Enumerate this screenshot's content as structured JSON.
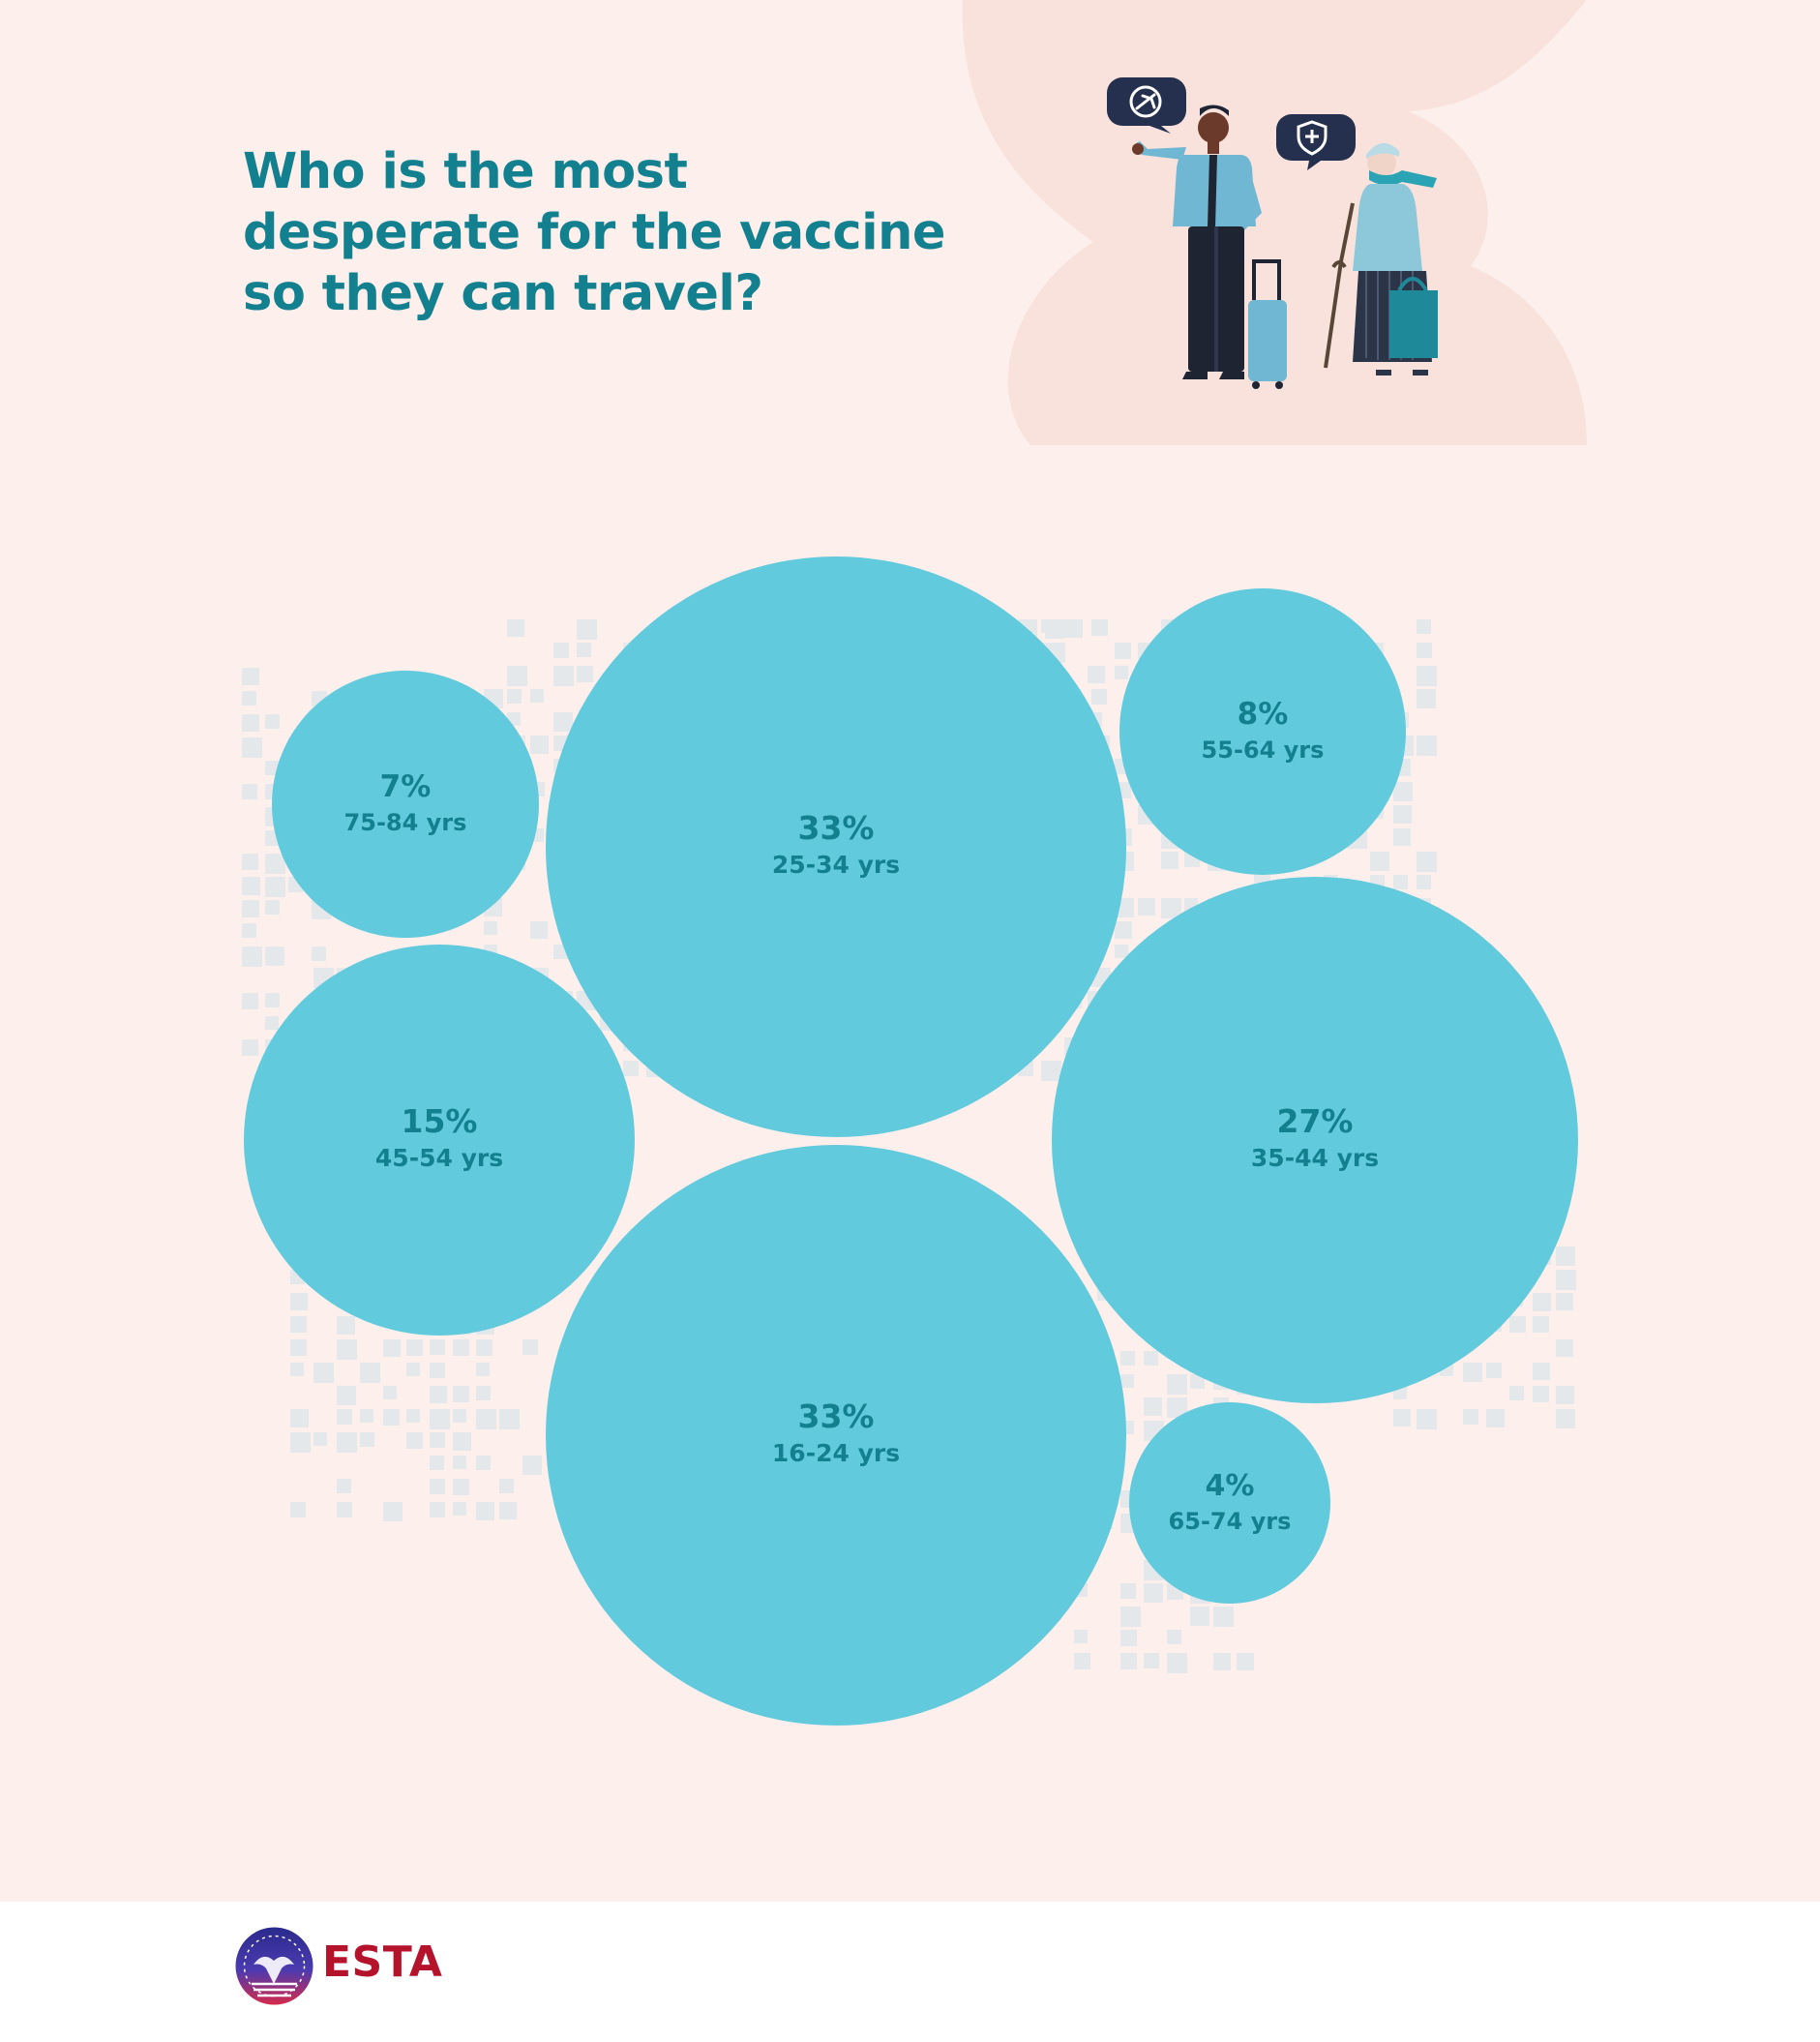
{
  "header": {
    "title": "Who is the most desperate for the vaccine so they can travel?"
  },
  "illustration": {
    "bubble_left_icon": "airplane-icon",
    "bubble_right_icon": "medical-shield-icon"
  },
  "colors": {
    "background": "#fdefeb",
    "bubble": "#62cadd",
    "label": "#13808f",
    "title": "#13808f"
  },
  "chart_data": {
    "type": "bubble",
    "title": "Who is the most desperate for the vaccine so they can travel?",
    "unit": "%",
    "series": [
      {
        "label": "25-34 yrs",
        "value": 33,
        "display": "33%"
      },
      {
        "label": "16-24 yrs",
        "value": 33,
        "display": "33%"
      },
      {
        "label": "35-44 yrs",
        "value": 27,
        "display": "27%"
      },
      {
        "label": "45-54 yrs",
        "value": 15,
        "display": "15%"
      },
      {
        "label": "55-64 yrs",
        "value": 8,
        "display": "8%"
      },
      {
        "label": "75-84 yrs",
        "value": 7,
        "display": "7%"
      },
      {
        "label": "65-74 yrs",
        "value": 4,
        "display": "4%"
      }
    ]
  },
  "footer": {
    "brand": "ESTA",
    "logo_icon": "eagle-seal-icon"
  }
}
